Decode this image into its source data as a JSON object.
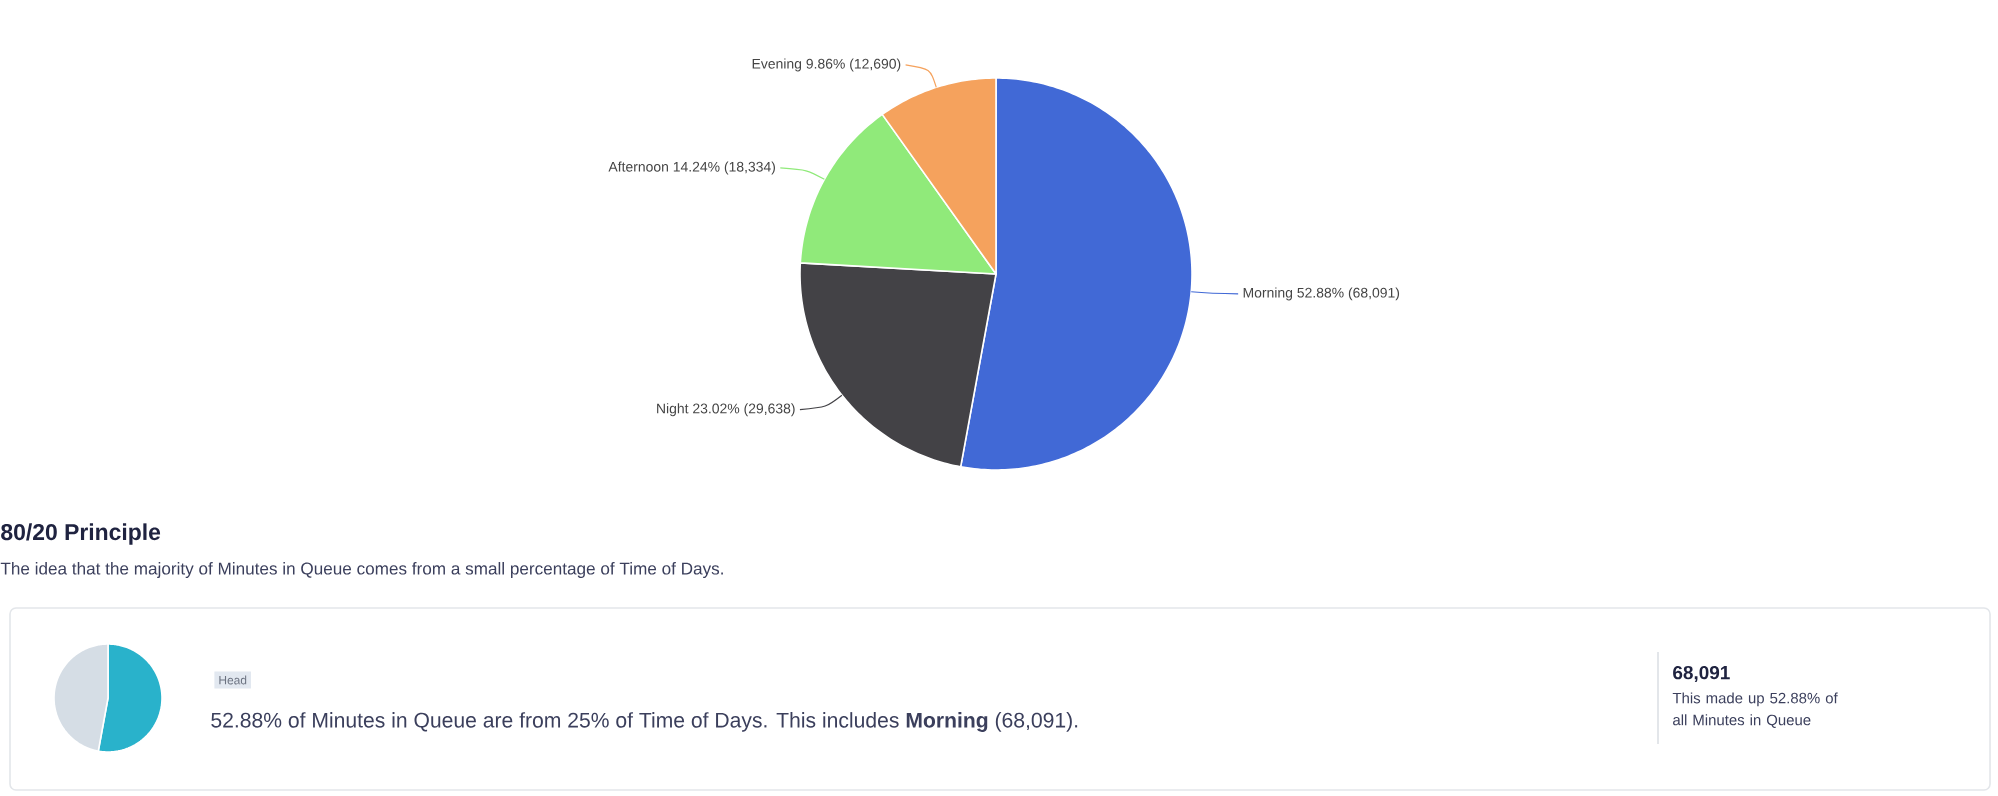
{
  "chart_data": [
    {
      "type": "pie",
      "categories": [
        "Morning",
        "Night",
        "Afternoon",
        "Evening"
      ],
      "values": [
        68091,
        29638,
        18334,
        12690
      ],
      "colors": [
        "#4169d6",
        "#434246",
        "#90ea7a",
        "#f5a25d"
      ],
      "value_labels": [
        "52.88% (68,091)",
        "23.02% (29,638)",
        "14.24% (18,334)",
        "9.86% (12,690)"
      ]
    },
    {
      "type": "pie",
      "title": "80/20 Principle",
      "subtitle": "The idea that the majority of Minutes in Queue comes from a small percentage of Time of Days.",
      "categories": [
        null,
        null
      ],
      "values": [
        52.88,
        47.12
      ],
      "colors": [
        "#29b2cb",
        "#d5dde5"
      ],
      "annotations": [
        "Head",
        "52.88% of Minutes in Queue are from 25% of Time of Days. This includes **Morning** (68,091).",
        "68,091",
        "This made up 52.88% of all Minutes in Queue"
      ]
    }
  ]
}
